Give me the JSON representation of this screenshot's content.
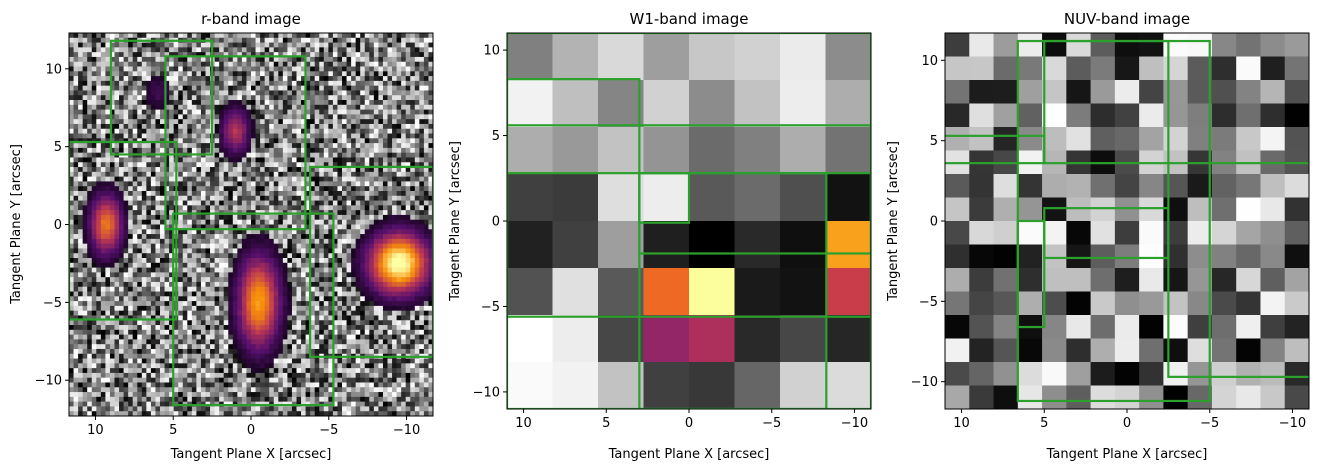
{
  "chart_data": [
    {
      "type": "heatmap",
      "title": "r-band image",
      "xlabel": "Tangent Plane X [arcsec]",
      "ylabel": "Tangent Plane Y [arcsec]",
      "x_range": [
        11.7,
        -11.7
      ],
      "y_range": [
        -12.3,
        12.3
      ],
      "x_ticks": [
        10,
        5,
        0,
        -5,
        -10
      ],
      "y_ticks": [
        -10,
        -5,
        0,
        5,
        10
      ],
      "colormap": "inferno-over-greyscale noise",
      "grid_size": [
        80,
        80
      ],
      "sources": [
        {
          "x": -9.5,
          "y": -2.5,
          "peak": 1.0,
          "sx": 1.3,
          "sy": 1.3
        },
        {
          "x": -0.5,
          "y": -5.0,
          "peak": 0.75,
          "sx": 0.9,
          "sy": 2.0
        },
        {
          "x": 9.3,
          "y": 0.0,
          "peak": 0.65,
          "sx": 0.7,
          "sy": 1.3
        },
        {
          "x": 1.0,
          "y": 6.0,
          "peak": 0.45,
          "sx": 0.6,
          "sy": 1.0
        },
        {
          "x": 6.0,
          "y": 8.5,
          "peak": 0.15,
          "sx": 0.6,
          "sy": 0.8
        }
      ],
      "boxes": [
        [
          9,
          2.5,
          4.5,
          11.8
        ],
        [
          5.5,
          -3.5,
          -0.3,
          10.8
        ],
        [
          11.7,
          4.8,
          -6.1,
          5.3
        ],
        [
          5.0,
          -5.3,
          -11.6,
          0.7
        ],
        [
          -3.8,
          -11.7,
          -8.5,
          3.7
        ]
      ]
    },
    {
      "type": "heatmap",
      "title": "W1-band image",
      "xlabel": "Tangent Plane X [arcsec]",
      "ylabel": "Tangent Plane Y [arcsec]",
      "x_range": [
        11,
        -11
      ],
      "y_range": [
        -11,
        11
      ],
      "x_ticks": [
        10,
        5,
        0,
        -5,
        -10
      ],
      "y_ticks": [
        -10,
        -5,
        0,
        5,
        10
      ],
      "grid_size": [
        8,
        8
      ],
      "pixels_rows_top_to_bottom": [
        [
          "g:0.50",
          "g:0.70",
          "g:0.85",
          "g:0.62",
          "g:0.78",
          "g:0.82",
          "g:0.92",
          "g:0.55"
        ],
        [
          "g:0.95",
          "g:0.75",
          "g:0.52",
          "g:0.82",
          "g:0.55",
          "g:0.76",
          "g:0.93",
          "g:0.68"
        ],
        [
          "g:0.68",
          "g:0.60",
          "g:0.76",
          "g:0.58",
          "g:0.42",
          "g:0.50",
          "g:0.68",
          "g:0.45"
        ],
        [
          "g:0.25",
          "g:0.23",
          "g:0.87",
          "g:0.93",
          "g:0.35",
          "g:0.42",
          "g:0.31",
          "g:0.07"
        ],
        [
          "g:0.13",
          "g:0.25",
          "g:0.62",
          "g:0.12",
          "g:0.00",
          "g:0.16",
          "g:0.06",
          "c:#f9a11c"
        ],
        [
          "g:0.32",
          "g:0.88",
          "g:0.35",
          "c:#ee6a24",
          "c:#fcfd9d",
          "g:0.10",
          "g:0.07",
          "c:#c93d4a"
        ],
        [
          "g:1.00",
          "g:0.93",
          "g:0.28",
          "c:#922666",
          "c:#ad2f5b",
          "g:0.16",
          "g:0.28",
          "g:0.15"
        ],
        [
          "g:0.98",
          "g:0.95",
          "g:0.76",
          "g:0.25",
          "g:0.22",
          "g:0.40",
          "g:0.82",
          "g:0.86"
        ]
      ],
      "boxes": [
        [
          11,
          -11,
          -11,
          11
        ],
        [
          11,
          3,
          5.6,
          8.3
        ],
        [
          3,
          -11,
          -1.9,
          5.6
        ],
        [
          3,
          0,
          -0.1,
          2.8
        ],
        [
          11,
          -11,
          -5.6,
          2.8
        ],
        [
          3,
          -8.3,
          -11,
          2.8
        ]
      ]
    },
    {
      "type": "heatmap",
      "title": "NUV-band image",
      "xlabel": "Tangent Plane X [arcsec]",
      "ylabel": "Tangent Plane Y [arcsec]",
      "x_range": [
        11,
        -11
      ],
      "y_range": [
        -11.7,
        11.7
      ],
      "x_ticks": [
        10,
        5,
        0,
        -5,
        -10
      ],
      "y_ticks": [
        -10,
        -5,
        0,
        5,
        10
      ],
      "grid_size": [
        15,
        16
      ],
      "seed": 7,
      "boxes": [
        [
          6.6,
          -5.0,
          -11.2,
          11.2
        ],
        [
          11.1,
          5.0,
          3.6,
          5.3
        ],
        [
          5.0,
          -2.5,
          3.6,
          11.2
        ],
        [
          -2.5,
          -11.1,
          -9.7,
          3.6
        ],
        [
          6.6,
          5.0,
          -6.6,
          0.0
        ],
        [
          5.0,
          -2.5,
          -2.3,
          0.8
        ]
      ]
    }
  ]
}
